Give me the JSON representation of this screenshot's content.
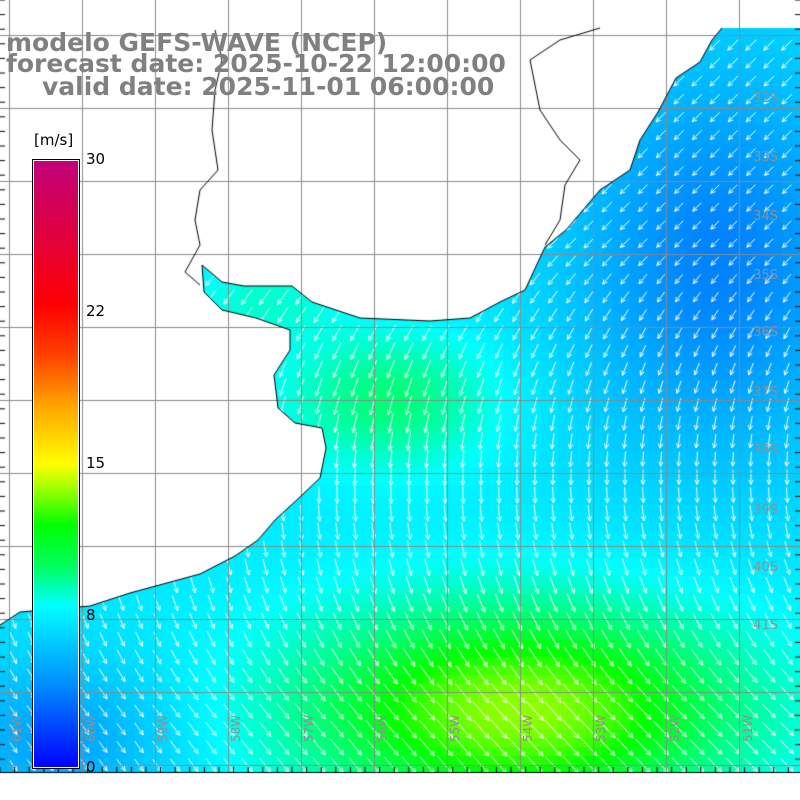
{
  "title": {
    "model": "modelo GEFS-WAVE (NCEP)",
    "forecast": "forecast date: 2025-10-22 12:00:00",
    "valid": "valid date: 2025-11-01 06:00:00"
  },
  "colorbar": {
    "unit": "[m/s]",
    "labels": [
      "30",
      "22",
      "15",
      "8",
      "0"
    ],
    "colors": {
      "min": "#0000ff",
      "mid": "#00ffff",
      "green": "#00ff00",
      "yellow": "#ffff00",
      "red": "#ff0000",
      "max": "#c0007a"
    }
  },
  "axes": {
    "lat_labels": [
      "32S",
      "33S",
      "34S",
      "35S",
      "36S",
      "37S",
      "38S",
      "39S",
      "40S",
      "41S"
    ],
    "lon_labels": [
      "61W",
      "60W",
      "59W",
      "58W",
      "57W",
      "56W",
      "55W",
      "54W",
      "53W",
      "52W",
      "51W"
    ]
  }
}
